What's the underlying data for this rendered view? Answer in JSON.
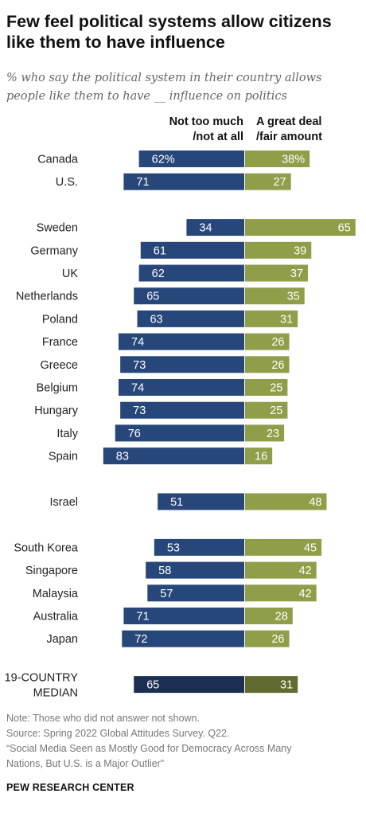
{
  "title": "Few feel political systems allow citizens like them to have influence",
  "subtitle": "% who say the political system in their country allows people like them to have __ influence on politics",
  "column_headers": {
    "negative_line1": "Not too much",
    "negative_line2": "/not at all",
    "positive_line1": "A great deal",
    "positive_line2": "/fair amount"
  },
  "colors": {
    "negative": "#27467a",
    "positive": "#8f9e48",
    "negative_median": "#1b2f52",
    "positive_median": "#616b2f",
    "bar_label": "#ffffff",
    "category_label": "#222222"
  },
  "chart_data": {
    "type": "bar",
    "orientation": "horizontal-diverging",
    "categories": [
      "Canada",
      "U.S.",
      "Sweden",
      "Germany",
      "UK",
      "Netherlands",
      "Poland",
      "France",
      "Greece",
      "Belgium",
      "Hungary",
      "Italy",
      "Spain",
      "Israel",
      "South Korea",
      "Singapore",
      "Malaysia",
      "Australia",
      "Japan",
      "19-COUNTRY MEDIAN"
    ],
    "category_display": [
      [
        "Canada"
      ],
      [
        "U.S."
      ],
      [
        "Sweden"
      ],
      [
        "Germany"
      ],
      [
        "UK"
      ],
      [
        "Netherlands"
      ],
      [
        "Poland"
      ],
      [
        "France"
      ],
      [
        "Greece"
      ],
      [
        "Belgium"
      ],
      [
        "Hungary"
      ],
      [
        "Italy"
      ],
      [
        "Spain"
      ],
      [
        "Israel"
      ],
      [
        "South Korea"
      ],
      [
        "Singapore"
      ],
      [
        "Malaysia"
      ],
      [
        "Australia"
      ],
      [
        "Japan"
      ],
      [
        "19-COUNTRY",
        "MEDIAN"
      ]
    ],
    "groups": [
      [
        0,
        1
      ],
      [
        2,
        3,
        4,
        5,
        6,
        7,
        8,
        9,
        10,
        11,
        12
      ],
      [
        13
      ],
      [
        14,
        15,
        16,
        17,
        18
      ],
      [
        19
      ]
    ],
    "series": [
      {
        "name": "Not too much/not at all",
        "values": [
          62,
          71,
          34,
          61,
          62,
          65,
          63,
          74,
          73,
          74,
          73,
          76,
          83,
          51,
          53,
          58,
          57,
          71,
          72,
          65
        ],
        "labels": [
          "62%",
          "71",
          "34",
          "61",
          "62",
          "65",
          "63",
          "74",
          "73",
          "74",
          "73",
          "76",
          "83",
          "51",
          "53",
          "58",
          "57",
          "71",
          "72",
          "65"
        ]
      },
      {
        "name": "A great deal/fair amount",
        "values": [
          38,
          27,
          65,
          39,
          37,
          35,
          31,
          26,
          26,
          25,
          25,
          23,
          16,
          48,
          45,
          42,
          42,
          28,
          26,
          31
        ],
        "labels": [
          "38%",
          "27",
          "65",
          "39",
          "37",
          "35",
          "31",
          "26",
          "26",
          "25",
          "25",
          "23",
          "16",
          "48",
          "45",
          "42",
          "42",
          "28",
          "26",
          "31"
        ]
      }
    ],
    "xlim": [
      0,
      100
    ]
  },
  "notes": [
    "Note: Those who did not answer not shown.",
    "Source: Spring 2022 Global Attitudes Survey. Q22.",
    "“Social Media Seen as Mostly Good for Democracy Across Many",
    "Nations, But U.S. is a Major Outlier”"
  ],
  "brand": "PEW RESEARCH CENTER"
}
